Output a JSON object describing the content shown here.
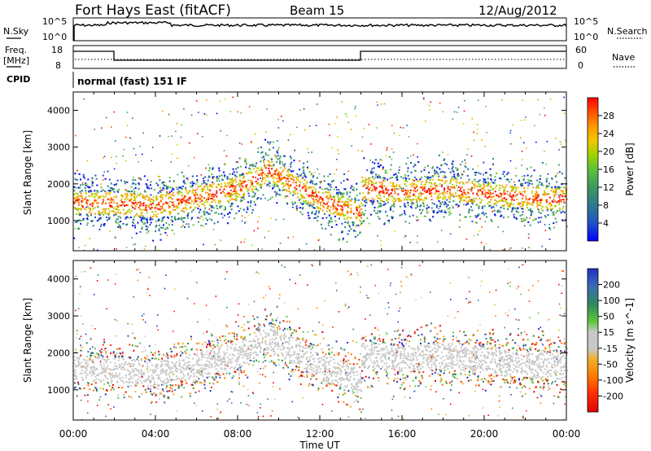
{
  "header": {
    "title": "Fort Hays East (fitACF)",
    "beam": "Beam 15",
    "date": "12/Aug/2012"
  },
  "labels": {
    "nsky": "N.Sky",
    "nsearch": "N.Search",
    "freq": "Freq.",
    "mhz": "[MHz]",
    "nave": "Nave",
    "cpid": "CPID",
    "cpid_value": "normal (fast) 151 IF",
    "nsky_ticks": [
      "10^5",
      "10^0"
    ],
    "nsearch_ticks": [
      "10^5",
      "10^0"
    ],
    "freq_ticks": [
      "18",
      "8"
    ],
    "nave_ticks": [
      "60",
      "0"
    ]
  },
  "chart_data": [
    {
      "type": "heatmap",
      "name": "power-panel",
      "ylabel": "Slant Range [km]",
      "xlabel": "",
      "x_ticks": [
        "00:00",
        "04:00",
        "08:00",
        "12:00",
        "16:00",
        "20:00",
        "00:00"
      ],
      "y_ticks": [
        1000,
        2000,
        3000,
        4000
      ],
      "ylim": [
        180,
        4500
      ],
      "colorbar": {
        "label": "Power [dB]",
        "ticks": [
          4,
          8,
          12,
          16,
          20,
          24,
          28
        ],
        "colors": [
          "#0000ff",
          "#1e50c8",
          "#2d7a8c",
          "#3c9a5a",
          "#5ac23c",
          "#a0d200",
          "#f0c800",
          "#ff9600",
          "#ff5000",
          "#ff0000"
        ]
      },
      "bands": [
        {
          "x": [
            0,
            2,
            4,
            8,
            9.5,
            12,
            14
          ],
          "y": [
            1500,
            1500,
            1400,
            1900,
            2400,
            1600,
            1200
          ]
        },
        {
          "x": [
            14,
            16,
            18,
            20,
            22,
            24
          ],
          "y": [
            1900,
            1800,
            1900,
            1750,
            1650,
            1600
          ]
        }
      ]
    },
    {
      "type": "heatmap",
      "name": "velocity-panel",
      "ylabel": "Slant Range [km]",
      "xlabel": "Time UT",
      "x_ticks": [
        "00:00",
        "04:00",
        "08:00",
        "12:00",
        "16:00",
        "20:00",
        "00:00"
      ],
      "y_ticks": [
        1000,
        2000,
        3000,
        4000
      ],
      "ylim": [
        180,
        4500
      ],
      "colorbar": {
        "label": "Velocity [m s^-1]",
        "ticks": [
          200,
          100,
          50,
          15,
          -15,
          -50,
          -100,
          -200
        ],
        "colors": [
          "#2030c0",
          "#3a6ab8",
          "#2e8a5a",
          "#5ec83a",
          "#c8c8c8",
          "#f0b030",
          "#ff7a00",
          "#ff3000",
          "#e00000"
        ]
      },
      "bands": [
        {
          "x": [
            0,
            2,
            4,
            8,
            9.5,
            12,
            14
          ],
          "y": [
            1600,
            1550,
            1450,
            1950,
            2450,
            1650,
            1250
          ]
        },
        {
          "x": [
            14,
            16,
            18,
            20,
            22,
            24
          ],
          "y": [
            1950,
            1850,
            1950,
            1800,
            1700,
            1650
          ]
        }
      ]
    }
  ]
}
